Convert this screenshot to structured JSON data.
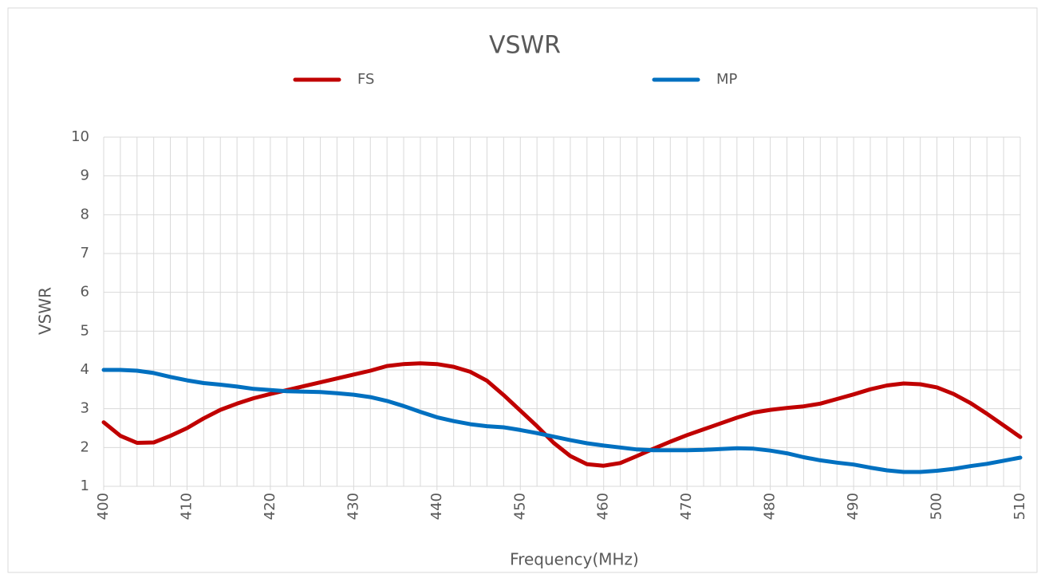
{
  "chart_data": {
    "type": "line",
    "title": "VSWR",
    "x_label": "Frequency(MHz)",
    "y_label": "VSWR",
    "x": [
      400,
      402,
      404,
      406,
      408,
      410,
      412,
      414,
      416,
      418,
      420,
      422,
      424,
      426,
      428,
      430,
      432,
      434,
      436,
      438,
      440,
      442,
      444,
      446,
      448,
      450,
      452,
      454,
      456,
      458,
      460,
      462,
      464,
      466,
      468,
      470,
      472,
      474,
      476,
      478,
      480,
      482,
      484,
      486,
      488,
      490,
      492,
      494,
      496,
      498,
      500,
      502,
      504,
      506,
      508,
      510
    ],
    "series": [
      {
        "name": "FS",
        "color": "#c00000",
        "values": [
          2.65,
          2.3,
          2.12,
          2.13,
          2.3,
          2.5,
          2.75,
          2.97,
          3.13,
          3.27,
          3.38,
          3.48,
          3.58,
          3.68,
          3.78,
          3.88,
          3.98,
          4.1,
          4.15,
          4.17,
          4.15,
          4.08,
          3.95,
          3.72,
          3.35,
          2.95,
          2.55,
          2.12,
          1.78,
          1.57,
          1.53,
          1.6,
          1.78,
          1.97,
          2.15,
          2.32,
          2.47,
          2.62,
          2.77,
          2.9,
          2.97,
          3.02,
          3.06,
          3.13,
          3.25,
          3.37,
          3.5,
          3.6,
          3.65,
          3.63,
          3.55,
          3.38,
          3.15,
          2.87,
          2.57,
          2.27
        ]
      },
      {
        "name": "MP",
        "color": "#0070c0",
        "values": [
          4.0,
          4.0,
          3.98,
          3.92,
          3.82,
          3.73,
          3.66,
          3.62,
          3.57,
          3.51,
          3.48,
          3.45,
          3.44,
          3.43,
          3.4,
          3.36,
          3.3,
          3.2,
          3.07,
          2.92,
          2.78,
          2.68,
          2.6,
          2.55,
          2.52,
          2.45,
          2.37,
          2.28,
          2.19,
          2.11,
          2.05,
          2.0,
          1.95,
          1.93,
          1.93,
          1.93,
          1.94,
          1.96,
          1.98,
          1.97,
          1.92,
          1.85,
          1.75,
          1.67,
          1.61,
          1.56,
          1.48,
          1.41,
          1.37,
          1.37,
          1.4,
          1.45,
          1.52,
          1.58,
          1.66,
          1.74
        ]
      }
    ],
    "xlim": [
      400,
      510
    ],
    "xticks": [
      400,
      410,
      420,
      430,
      440,
      450,
      460,
      470,
      480,
      490,
      500,
      510
    ],
    "ylim": [
      1,
      10
    ],
    "yticks": [
      1,
      2,
      3,
      4,
      5,
      6,
      7,
      8,
      9,
      10
    ],
    "grid": true,
    "legend": "top"
  }
}
